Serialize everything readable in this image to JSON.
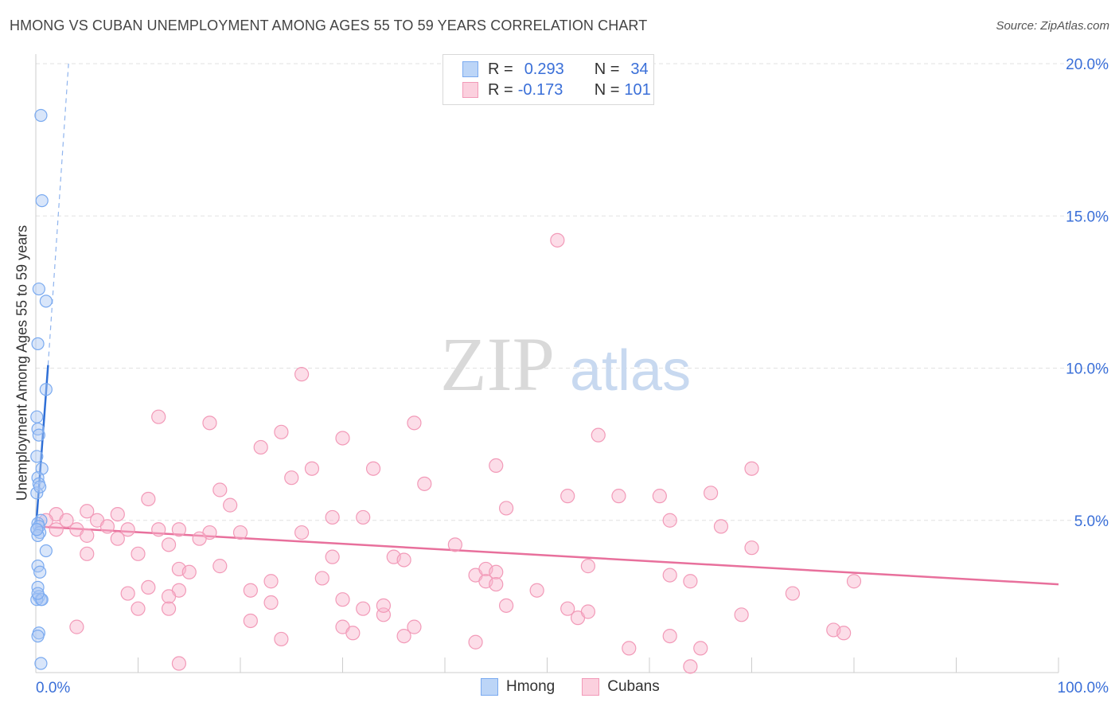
{
  "header": {
    "title": "HMONG VS CUBAN UNEMPLOYMENT AMONG AGES 55 TO 59 YEARS CORRELATION CHART",
    "source": "Source: ZipAtlas.com"
  },
  "legend": {
    "hmong": {
      "r_label": "R =",
      "r_value": "0.293",
      "n_label": "N =",
      "n_value": "34"
    },
    "cubans": {
      "r_label": "R =",
      "r_value": "-0.173",
      "n_label": "N =",
      "n_value": "101"
    }
  },
  "bottom_legend": {
    "hmong": "Hmong",
    "cubans": "Cubans"
  },
  "watermark": {
    "zip": "ZIP",
    "atlas": "atlas"
  },
  "chart_data": {
    "type": "scatter",
    "title": "HMONG VS CUBAN UNEMPLOYMENT AMONG AGES 55 TO 59 YEARS CORRELATION CHART",
    "xlabel": "",
    "ylabel": "Unemployment Among Ages 55 to 59 years",
    "xlim": [
      0,
      100
    ],
    "ylim": [
      0,
      20
    ],
    "x_tick_labels": [
      "0.0%",
      "100.0%"
    ],
    "y_ticks": [
      5,
      10,
      15,
      20
    ],
    "y_tick_labels": [
      "5.0%",
      "10.0%",
      "15.0%",
      "20.0%"
    ],
    "colors": {
      "hmong": "#7aaaf0",
      "hmong_line": "#2f6fd6",
      "cubans": "#f29ab8",
      "cubans_line": "#e8709c"
    },
    "series": [
      {
        "name": "Hmong",
        "r": 0.293,
        "n": 34,
        "trend": {
          "x": [
            0,
            1.2
          ],
          "y": [
            4.7,
            10.1
          ]
        },
        "trend_dashed": {
          "x": [
            1.2,
            3.2
          ],
          "y": [
            10.1,
            20.0
          ]
        },
        "points": [
          [
            0.5,
            18.3
          ],
          [
            0.6,
            15.5
          ],
          [
            0.3,
            12.6
          ],
          [
            1.0,
            12.2
          ],
          [
            0.2,
            10.8
          ],
          [
            1.0,
            9.3
          ],
          [
            0.1,
            8.4
          ],
          [
            0.2,
            8.0
          ],
          [
            0.3,
            7.8
          ],
          [
            0.1,
            7.1
          ],
          [
            0.6,
            6.7
          ],
          [
            0.2,
            6.4
          ],
          [
            0.3,
            6.2
          ],
          [
            0.1,
            5.9
          ],
          [
            0.5,
            5.0
          ],
          [
            0.2,
            4.9
          ],
          [
            0.3,
            4.8
          ],
          [
            0.1,
            4.7
          ],
          [
            0.4,
            4.6
          ],
          [
            0.2,
            4.5
          ],
          [
            1.0,
            4.0
          ],
          [
            0.2,
            3.5
          ],
          [
            0.4,
            3.3
          ],
          [
            0.2,
            2.8
          ],
          [
            0.3,
            2.5
          ],
          [
            0.5,
            2.4
          ],
          [
            0.1,
            2.4
          ],
          [
            0.6,
            2.4
          ],
          [
            0.3,
            1.3
          ],
          [
            0.2,
            1.2
          ],
          [
            0.5,
            0.3
          ],
          [
            0.2,
            2.6
          ],
          [
            0.4,
            6.1
          ],
          [
            0.1,
            4.7
          ]
        ]
      },
      {
        "name": "Cubans",
        "r": -0.173,
        "n": 101,
        "trend": {
          "x": [
            0,
            100
          ],
          "y": [
            4.8,
            2.9
          ]
        },
        "points": [
          [
            51,
            14.2
          ],
          [
            26,
            9.8
          ],
          [
            12,
            8.4
          ],
          [
            17,
            8.2
          ],
          [
            37,
            8.2
          ],
          [
            24,
            7.9
          ],
          [
            30,
            7.7
          ],
          [
            55,
            7.8
          ],
          [
            22,
            7.4
          ],
          [
            27,
            6.7
          ],
          [
            33,
            6.7
          ],
          [
            45,
            6.8
          ],
          [
            70,
            6.7
          ],
          [
            25,
            6.4
          ],
          [
            38,
            6.2
          ],
          [
            18,
            6.0
          ],
          [
            11,
            5.7
          ],
          [
            19,
            5.5
          ],
          [
            52,
            5.8
          ],
          [
            57,
            5.8
          ],
          [
            61,
            5.8
          ],
          [
            66,
            5.9
          ],
          [
            2,
            5.2
          ],
          [
            5,
            5.3
          ],
          [
            8,
            5.2
          ],
          [
            14,
            4.7
          ],
          [
            29,
            5.1
          ],
          [
            32,
            5.1
          ],
          [
            46,
            5.4
          ],
          [
            62,
            5.0
          ],
          [
            3,
            5.0
          ],
          [
            4,
            4.7
          ],
          [
            6,
            5.0
          ],
          [
            7,
            4.8
          ],
          [
            9,
            4.7
          ],
          [
            12,
            4.7
          ],
          [
            17,
            4.6
          ],
          [
            20,
            4.6
          ],
          [
            26,
            4.6
          ],
          [
            67,
            4.8
          ],
          [
            1,
            5.0
          ],
          [
            2,
            4.7
          ],
          [
            5,
            4.5
          ],
          [
            8,
            4.4
          ],
          [
            13,
            4.2
          ],
          [
            16,
            4.4
          ],
          [
            5,
            3.9
          ],
          [
            10,
            3.9
          ],
          [
            29,
            3.8
          ],
          [
            35,
            3.8
          ],
          [
            36,
            3.7
          ],
          [
            41,
            4.2
          ],
          [
            70,
            4.1
          ],
          [
            14,
            3.4
          ],
          [
            15,
            3.3
          ],
          [
            18,
            3.5
          ],
          [
            23,
            3.0
          ],
          [
            43,
            3.2
          ],
          [
            44,
            3.4
          ],
          [
            45,
            3.3
          ],
          [
            54,
            3.5
          ],
          [
            62,
            3.2
          ],
          [
            64,
            3.0
          ],
          [
            80,
            3.0
          ],
          [
            11,
            2.8
          ],
          [
            14,
            2.7
          ],
          [
            21,
            2.7
          ],
          [
            9,
            2.6
          ],
          [
            13,
            2.5
          ],
          [
            23,
            2.3
          ],
          [
            30,
            2.4
          ],
          [
            44,
            3.0
          ],
          [
            45,
            2.9
          ],
          [
            49,
            2.7
          ],
          [
            74,
            2.6
          ],
          [
            10,
            2.1
          ],
          [
            13,
            2.1
          ],
          [
            32,
            2.1
          ],
          [
            34,
            1.9
          ],
          [
            46,
            2.2
          ],
          [
            52,
            2.1
          ],
          [
            53,
            1.8
          ],
          [
            54,
            2.0
          ],
          [
            69,
            1.9
          ],
          [
            21,
            1.7
          ],
          [
            30,
            1.5
          ],
          [
            36,
            1.2
          ],
          [
            31,
            1.3
          ],
          [
            37,
            1.5
          ],
          [
            24,
            1.1
          ],
          [
            43,
            1.0
          ],
          [
            58,
            0.8
          ],
          [
            62,
            1.2
          ],
          [
            65,
            0.8
          ],
          [
            78,
            1.4
          ],
          [
            79,
            1.3
          ],
          [
            14,
            0.3
          ],
          [
            64,
            0.2
          ],
          [
            4,
            1.5
          ],
          [
            28,
            3.1
          ],
          [
            34,
            2.2
          ]
        ]
      }
    ]
  }
}
